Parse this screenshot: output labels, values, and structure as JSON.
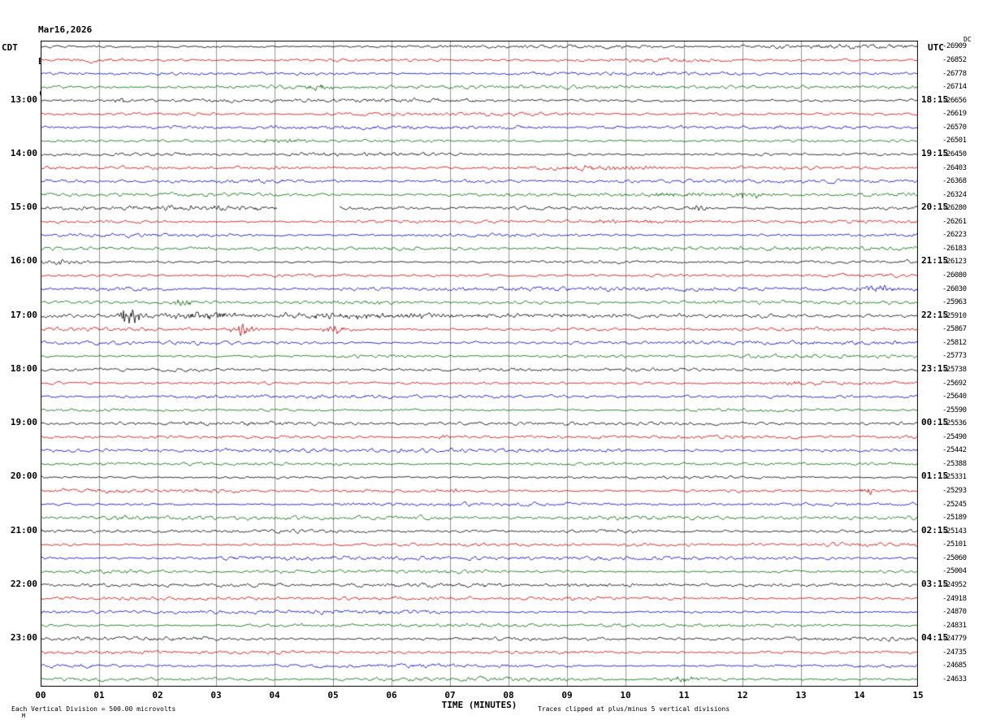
{
  "header": {
    "date": "Mar16,2026",
    "station": "EDIL HNZ NM 00",
    "location": "(SIU at Edwardsville, IL  (ASL))"
  },
  "left_axis": {
    "top_label": "CDT",
    "hours": [
      "13:00",
      "14:00",
      "15:00",
      "16:00",
      "17:00",
      "18:00",
      "19:00",
      "20:00",
      "21:00",
      "22:00",
      "23:00"
    ]
  },
  "right_axis": {
    "top_label": "UTC",
    "dc_label": "DC",
    "hours": [
      "18:15",
      "19:15",
      "20:15",
      "21:15",
      "22:15",
      "23:15",
      "00:15",
      "01:15",
      "02:15",
      "03:15",
      "04:15"
    ]
  },
  "x_axis": {
    "label": "TIME (MINUTES)",
    "ticks": [
      "00",
      "01",
      "02",
      "03",
      "04",
      "05",
      "06",
      "07",
      "08",
      "09",
      "10",
      "11",
      "12",
      "13",
      "14",
      "15"
    ]
  },
  "footer": {
    "left": "Each Vertical Division =  500.00 microvolts",
    "right": "Traces clipped at plus/minus 5 vertical divisions",
    "mark": "M"
  },
  "chart_data": {
    "type": "line",
    "variant": "helicorder-seismogram",
    "title": "EDIL HNZ NM 00 (SIU at Edwardsville, IL (ASL)) Mar16,2026",
    "rows": 48,
    "minutes_per_row": 15,
    "traces_per_hour": 4,
    "vertical_division_microvolts": 500.0,
    "clip_divisions": 5,
    "colors": [
      "#000000",
      "#cc0000",
      "#0000bb",
      "#006600"
    ],
    "grid_color": "#979797",
    "row_offsets": [
      "-26909",
      "-26852",
      "-26778",
      "-26714",
      "-26656",
      "-26619",
      "-26570",
      "-26501",
      "-26450",
      "-26403",
      "-26368",
      "-26324",
      "-26280",
      "-26261",
      "-26223",
      "-26183",
      "-26123",
      "-26080",
      "-26030",
      "-25963",
      "-25910",
      "-25867",
      "-25812",
      "-25773",
      "-25738",
      "-25692",
      "-25640",
      "-25590",
      "-25536",
      "-25490",
      "-25442",
      "-25388",
      "-25331",
      "-25293",
      "-25245",
      "-25189",
      "-25143",
      "-25101",
      "-25060",
      "-25004",
      "-24952",
      "-24918",
      "-24870",
      "-24831",
      "-24779",
      "-24735",
      "-24685",
      "-24633"
    ],
    "events": [
      {
        "row": 3,
        "t": 4.7,
        "dur": 0.5,
        "amp": 2.5
      },
      {
        "row": 4,
        "t": 1.35,
        "dur": 0.2,
        "amp": 2.5
      },
      {
        "row": 7,
        "t": 4.1,
        "dur": 0.7,
        "amp": 2.0
      },
      {
        "row": 9,
        "t": 10.0,
        "dur": 2.0,
        "amp": 1.5
      },
      {
        "row": 11,
        "t": 10.6,
        "dur": 2.2,
        "amp": 2.0
      },
      {
        "row": 11,
        "t": 12.1,
        "dur": 0.4,
        "amp": 3.0
      },
      {
        "row": 12,
        "t": 2.0,
        "dur": 3.5,
        "amp": 1.6
      },
      {
        "row": 12,
        "t": 11.25,
        "dur": 0.3,
        "amp": 3.0
      },
      {
        "row": 13,
        "t": 10.2,
        "dur": 2.5,
        "amp": 1.8
      },
      {
        "row": 16,
        "t": 0.4,
        "dur": 0.3,
        "amp": 2.5
      },
      {
        "row": 18,
        "t": 14.25,
        "dur": 0.5,
        "amp": 3.5
      },
      {
        "row": 19,
        "t": 2.45,
        "dur": 0.3,
        "amp": 3.0
      },
      {
        "row": 20,
        "t": 1.5,
        "dur": 0.3,
        "amp": 9.0
      },
      {
        "row": 20,
        "t": 2.6,
        "dur": 1.2,
        "amp": 3.0
      },
      {
        "row": 20,
        "t": 5.0,
        "dur": 2.5,
        "amp": 2.2
      },
      {
        "row": 20,
        "t": 8.5,
        "dur": 4.0,
        "amp": 1.3
      },
      {
        "row": 21,
        "t": 3.45,
        "dur": 0.35,
        "amp": 7.0
      },
      {
        "row": 21,
        "t": 5.05,
        "dur": 0.35,
        "amp": 5.0
      },
      {
        "row": 25,
        "t": 13.0,
        "dur": 1.5,
        "amp": 1.4
      },
      {
        "row": 29,
        "t": 6.9,
        "dur": 0.2,
        "amp": 2.5
      },
      {
        "row": 33,
        "t": 7.0,
        "dur": 0.5,
        "amp": 2.0
      },
      {
        "row": 33,
        "t": 14.15,
        "dur": 0.15,
        "amp": 5.0
      },
      {
        "row": 40,
        "t": 9.5,
        "dur": 2.0,
        "amp": 1.4
      },
      {
        "row": 47,
        "t": 11.0,
        "dur": 0.5,
        "amp": 2.5
      }
    ],
    "gaps": [
      {
        "row": 12,
        "start": 4.05,
        "end": 5.1
      }
    ]
  }
}
